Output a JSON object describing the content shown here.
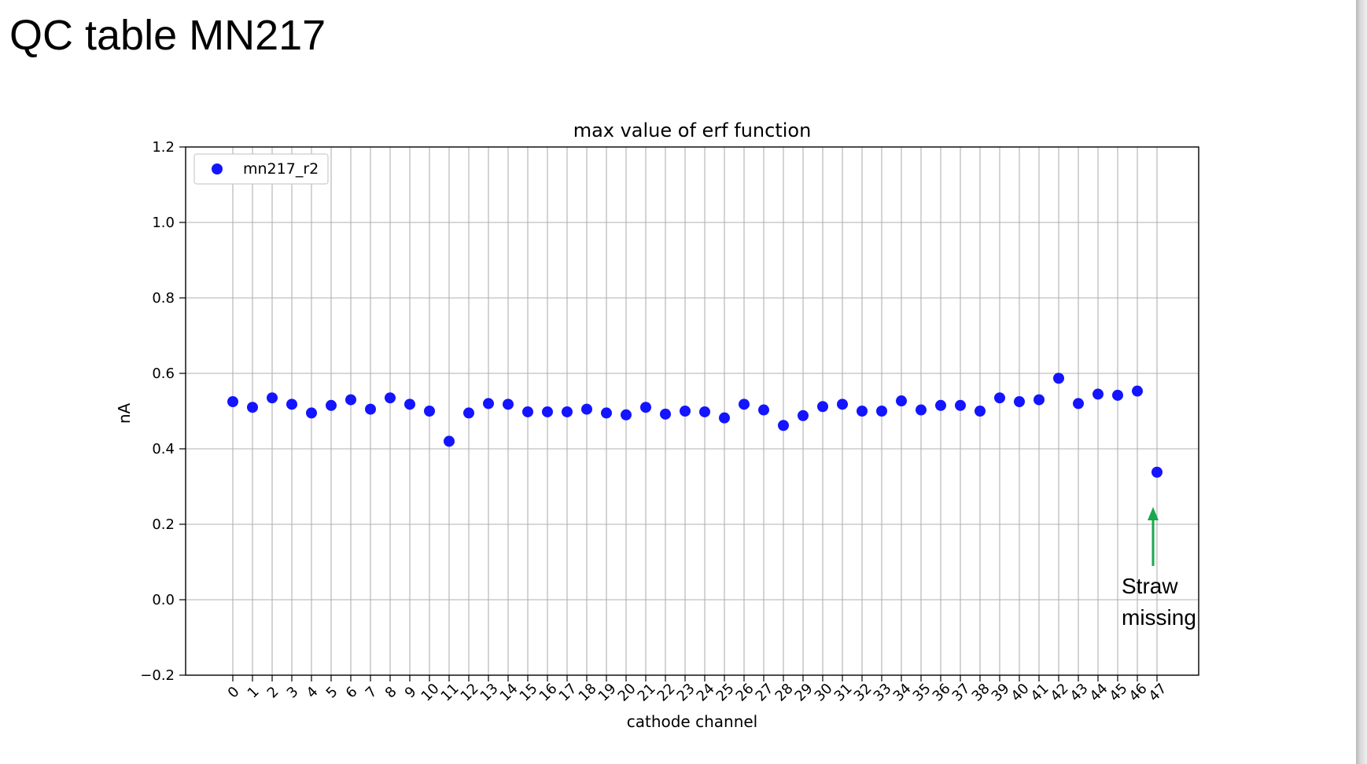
{
  "page": {
    "title": "QC table MN217"
  },
  "annotation": {
    "line1": "Straw",
    "line2": "missing",
    "arrow_color": "#1aa84c"
  },
  "chart_data": {
    "type": "scatter",
    "title": "max value of erf function",
    "xlabel": "cathode channel",
    "ylabel": "nA",
    "ylim": [
      -0.2,
      1.2
    ],
    "yticks": [
      -0.2,
      0.0,
      0.2,
      0.4,
      0.6,
      0.8,
      1.0,
      1.2
    ],
    "ytick_labels": [
      "−0.2",
      "0.0",
      "0.2",
      "0.4",
      "0.6",
      "0.8",
      "1.0",
      "1.2"
    ],
    "xticks": [
      "0",
      "1",
      "2",
      "3",
      "4",
      "5",
      "6",
      "7",
      "8",
      "9",
      "10",
      "11",
      "12",
      "13",
      "14",
      "15",
      "16",
      "17",
      "18",
      "19",
      "20",
      "21",
      "22",
      "23",
      "24",
      "25",
      "26",
      "27",
      "28",
      "29",
      "30",
      "31",
      "32",
      "33",
      "34",
      "35",
      "36",
      "37",
      "38",
      "39",
      "40",
      "41",
      "42",
      "43",
      "44",
      "45",
      "46",
      "47"
    ],
    "grid": true,
    "legend_position": "top-left",
    "marker_color": "#1414ff",
    "series": [
      {
        "name": "mn217_r2",
        "x": [
          0,
          1,
          2,
          3,
          4,
          5,
          6,
          7,
          8,
          9,
          10,
          11,
          12,
          13,
          14,
          15,
          16,
          17,
          18,
          19,
          20,
          21,
          22,
          23,
          24,
          25,
          26,
          27,
          28,
          29,
          30,
          31,
          32,
          33,
          34,
          35,
          36,
          37,
          38,
          39,
          40,
          41,
          42,
          43,
          44,
          45,
          46,
          47
        ],
        "values": [
          0.525,
          0.51,
          0.535,
          0.518,
          0.495,
          0.515,
          0.53,
          0.505,
          0.535,
          0.518,
          0.5,
          0.42,
          0.495,
          0.52,
          0.518,
          0.498,
          0.498,
          0.498,
          0.505,
          0.495,
          0.49,
          0.51,
          0.492,
          0.5,
          0.498,
          0.482,
          0.518,
          0.503,
          0.462,
          0.488,
          0.512,
          0.518,
          0.5,
          0.5,
          0.527,
          0.503,
          0.515,
          0.515,
          0.5,
          0.535,
          0.525,
          0.53,
          0.587,
          0.52,
          0.545,
          0.542,
          0.553,
          0.338
        ]
      }
    ]
  }
}
